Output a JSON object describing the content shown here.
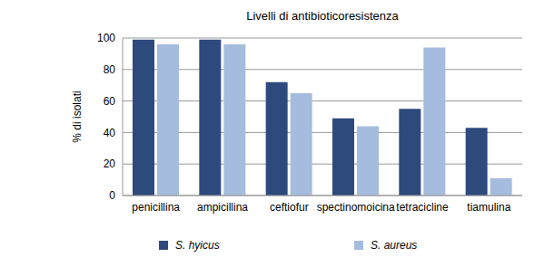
{
  "chart_data": {
    "type": "bar",
    "title": "Livelli di antibioticoresistenza",
    "y_label": "% di isolati",
    "categories": [
      "penicillina",
      "ampicillina",
      "ceftiofur",
      "spectinomoicina",
      "tetracicline",
      "tiamulina"
    ],
    "series": [
      {
        "name": "S. hyicus",
        "color": "#2e4a7d",
        "values": [
          99,
          99,
          72,
          49,
          55,
          43
        ]
      },
      {
        "name": "S. aureus",
        "color": "#a6bcde",
        "values": [
          96,
          96,
          65,
          44,
          94,
          11
        ]
      }
    ],
    "ylim": [
      0,
      100
    ],
    "yticks": [
      0,
      20,
      40,
      60,
      80,
      100
    ],
    "grid": true,
    "legend": "bottom"
  }
}
